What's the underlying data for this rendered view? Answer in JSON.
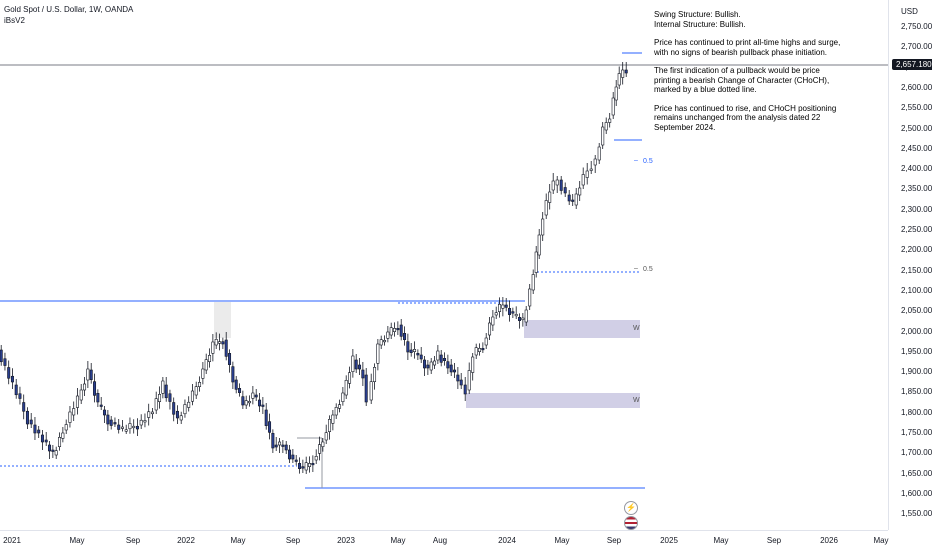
{
  "header": {
    "symbol_line": "Gold Spot / U.S. Dollar, 1W, OANDA",
    "indicator": "iBsV2"
  },
  "notes": {
    "swing": "Swing Structure: Bullish.",
    "internal": "Internal Structure: Bullish.",
    "p1": "Price has continued to print all-time highs and surge, with no signs of bearish pullback phase initiation.",
    "p2": "The first indication of a pullback would be price printing a bearish Change of Character (CHoCH), marked by a blue dotted line.",
    "p3": "Price has continued to rise, and CHoCH positioning remains unchanged from the analysis dated 22 September 2024."
  },
  "price_axis": {
    "currency": "USD",
    "current_price": "2,657.180",
    "ticks": [
      "2,750.000",
      "2,700.000",
      "2,650.000",
      "2,600.000",
      "2,550.000",
      "2,500.000",
      "2,450.000",
      "2,400.000",
      "2,350.000",
      "2,300.000",
      "2,250.000",
      "2,200.000",
      "2,150.000",
      "2,100.000",
      "2,050.000",
      "2,000.000",
      "1,950.000",
      "1,900.000",
      "1,850.000",
      "1,800.000",
      "1,750.000",
      "1,700.000",
      "1,650.000",
      "1,600.000",
      "1,550.000"
    ]
  },
  "time_axis": {
    "labels": [
      "2021",
      "May",
      "Sep",
      "2022",
      "May",
      "Sep",
      "2023",
      "May",
      "Aug",
      "2024",
      "May",
      "Sep",
      "2025",
      "May",
      "Sep",
      "2026",
      "May"
    ]
  },
  "annotations": {
    "fib_upper": "0.5",
    "fib_lower": "0.5",
    "ob_upper": "W",
    "ob_lower": "W"
  },
  "icons": {
    "lightning": "lightning-icon",
    "flag": "us-flag-icon"
  },
  "colors": {
    "bull_candle": "#ffffff",
    "bear_candle": "#2a3f8f",
    "structure_line": "#2962ff",
    "order_block": "#d1cfe6"
  }
}
